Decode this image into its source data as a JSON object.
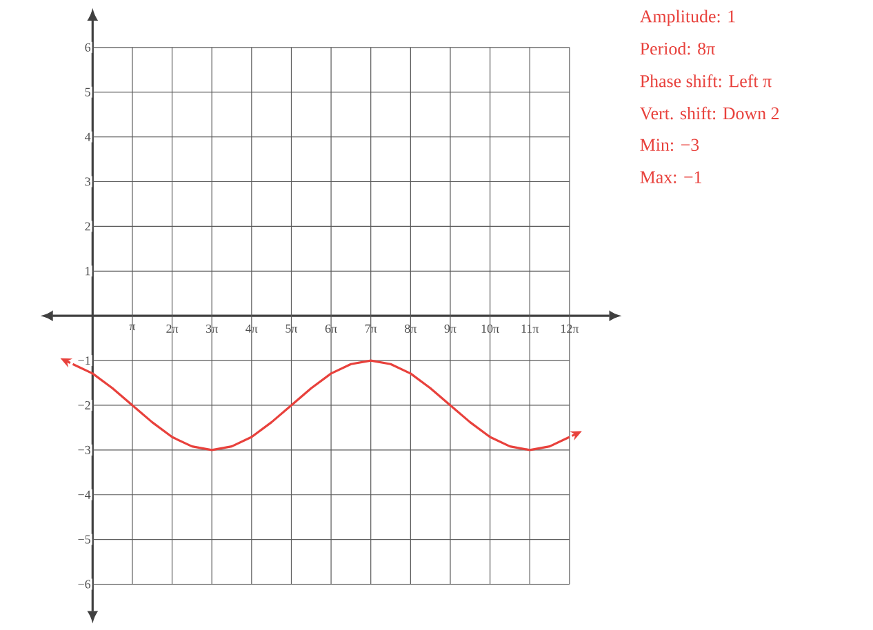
{
  "chart_data": {
    "type": "line",
    "x": [
      -1.571,
      0,
      1.571,
      3.142,
      4.712,
      6.283,
      7.854,
      9.425,
      10.996,
      12.566,
      14.137,
      15.708,
      17.279,
      18.85,
      20.42,
      21.991,
      23.562,
      25.133,
      26.704,
      28.274,
      29.845,
      31.416,
      32.987,
      34.558,
      36.128,
      37.699
    ],
    "series": [
      {
        "color": "#e8413c",
        "values": [
          -1.08,
          -1.29,
          -1.62,
          -2,
          -2.38,
          -2.71,
          -2.92,
          -3,
          -2.92,
          -2.71,
          -2.38,
          -2,
          -1.62,
          -1.29,
          -1.08,
          -1,
          -1.08,
          -1.29,
          -1.62,
          -2,
          -2.38,
          -2.71,
          -2.92,
          -3,
          -2.92,
          -2.71
        ]
      }
    ],
    "xlim": [
      -3.14,
      40.84
    ],
    "ylim": [
      -6.6,
      6.6
    ],
    "xticks": [
      {
        "value": 3.1416,
        "label": "π"
      },
      {
        "value": 6.2832,
        "label": "2π"
      },
      {
        "value": 9.4248,
        "label": "3π"
      },
      {
        "value": 12.5664,
        "label": "4π"
      },
      {
        "value": 15.708,
        "label": "5π"
      },
      {
        "value": 18.8496,
        "label": "6π"
      },
      {
        "value": 21.9911,
        "label": "7π"
      },
      {
        "value": 25.1327,
        "label": "8π"
      },
      {
        "value": 28.2743,
        "label": "9π"
      },
      {
        "value": 31.4159,
        "label": "10π"
      },
      {
        "value": 34.5575,
        "label": "11π"
      },
      {
        "value": 37.6991,
        "label": "12π"
      }
    ],
    "yticks": [
      {
        "value": -6,
        "label": "−6"
      },
      {
        "value": -5,
        "label": "−5"
      },
      {
        "value": -4,
        "label": "−4"
      },
      {
        "value": -3,
        "label": "−3"
      },
      {
        "value": -2,
        "label": "−2"
      },
      {
        "value": -1,
        "label": "−1"
      },
      1,
      2,
      3,
      4,
      5,
      6
    ],
    "grid": true,
    "marker": "none",
    "line_style": "solid",
    "annotations": [
      "Amplitude: 1",
      "Period: 8π",
      "Phase shift: Left π",
      "Vert. shift: Down 2",
      "Min: −3",
      "Max: −1"
    ]
  }
}
